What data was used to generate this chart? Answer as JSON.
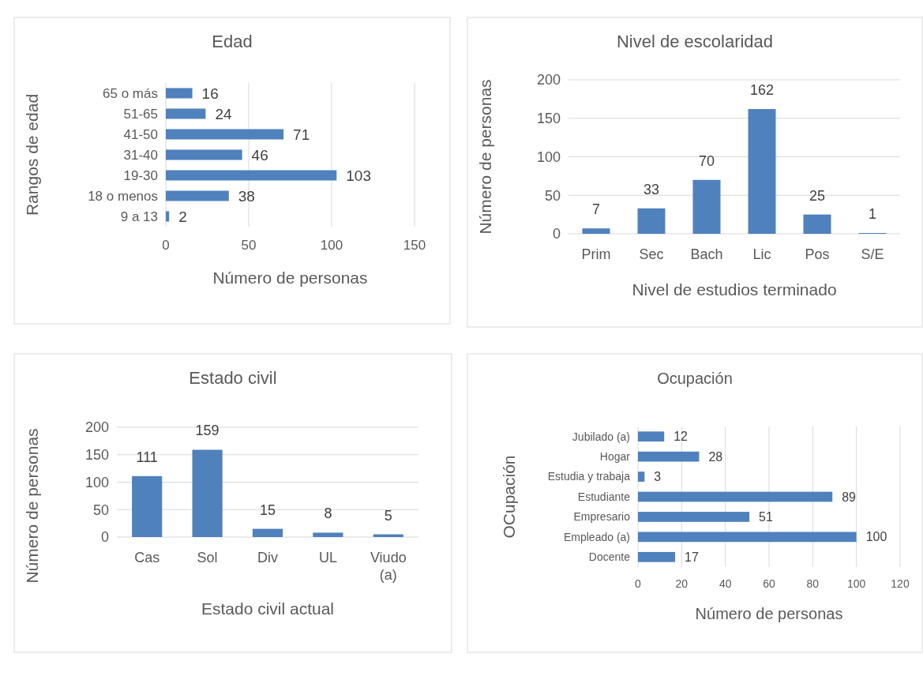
{
  "chart_data": [
    {
      "type": "bar",
      "orientation": "horizontal",
      "title": "Edad",
      "xlabel": "Número de personas",
      "ylabel": "Rangos de edad",
      "categories": [
        "65 o más",
        "51-65",
        "41-50",
        "31-40",
        "19-30",
        "18 o menos",
        "9 a 13"
      ],
      "values": [
        16,
        24,
        71,
        46,
        103,
        38,
        2
      ],
      "color": "#4f81bd",
      "xlim": [
        0,
        150
      ],
      "xticks": [
        0,
        50,
        100,
        150
      ],
      "grid": "x",
      "data_labels": true
    },
    {
      "type": "bar",
      "title": "Nivel de escolaridad",
      "xlabel": "Nivel de estudios terminado",
      "ylabel": "Número de personas",
      "categories": [
        "Prim",
        "Sec",
        "Bach",
        "Lic",
        "Pos",
        "S/E"
      ],
      "values": [
        7,
        33,
        70,
        162,
        25,
        1
      ],
      "color": "#4f81bd",
      "ylim": [
        0,
        200
      ],
      "yticks": [
        0,
        50,
        100,
        150,
        200
      ],
      "grid": "y",
      "data_labels": true
    },
    {
      "type": "bar",
      "title": "Estado civil",
      "xlabel": "Estado civil actual",
      "ylabel": "Número de personas",
      "categories": [
        "Cas",
        "Sol",
        "Div",
        "UL",
        "Viudo (a)"
      ],
      "values": [
        111,
        159,
        15,
        8,
        5
      ],
      "color": "#4f81bd",
      "ylim": [
        0,
        200
      ],
      "yticks": [
        0,
        50,
        100,
        150,
        200
      ],
      "grid": "y",
      "data_labels": true
    },
    {
      "type": "bar",
      "orientation": "horizontal",
      "title": "Ocupación",
      "xlabel": "Número de personas",
      "ylabel": "OCupación",
      "categories": [
        "Jubilado (a)",
        "Hogar",
        "Estudia y trabaja",
        "Estudiante",
        "Empresario",
        "Empleado (a)",
        "Docente"
      ],
      "values": [
        12,
        28,
        3,
        89,
        51,
        100,
        17
      ],
      "color": "#4f81bd",
      "xlim": [
        0,
        120
      ],
      "xticks": [
        0,
        20,
        40,
        60,
        80,
        100,
        120
      ],
      "grid": "x",
      "data_labels": true
    }
  ]
}
